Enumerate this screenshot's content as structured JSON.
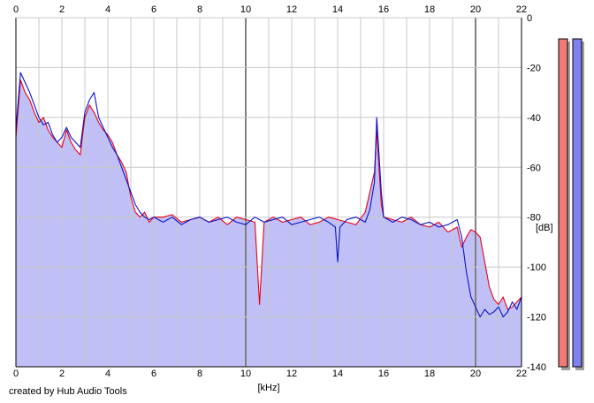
{
  "credit_text": "created by Hub Audio Tools",
  "chart_data": {
    "type": "area",
    "xlabel": "[kHz]",
    "ylabel": "[dB]",
    "xlim": [
      0,
      22
    ],
    "ylim": [
      -140,
      0
    ],
    "x_ticks": [
      "0",
      "2",
      "4",
      "6",
      "8",
      "10",
      "12",
      "14",
      "16",
      "18",
      "20",
      "22"
    ],
    "y_ticks": [
      "0",
      "-20",
      "-40",
      "-60",
      "-80",
      "-100",
      "-120",
      "-140"
    ],
    "grid": true,
    "colors": {
      "fill": "#c0c0f6",
      "channel_red": "#e8001a",
      "channel_blue": "#0a14c8",
      "meter_red": "#ef7b74",
      "meter_blue": "#8080f0",
      "grid": "#c8c8c8",
      "major_grid": "#808080"
    },
    "series": [
      {
        "color": "red",
        "x": [
          0,
          0.2,
          0.4,
          0.6,
          0.8,
          1.0,
          1.2,
          1.4,
          1.6,
          1.8,
          2.0,
          2.2,
          2.4,
          2.6,
          2.8,
          3.0,
          3.2,
          3.4,
          3.6,
          3.8,
          4.0,
          4.2,
          4.4,
          4.6,
          4.8,
          5.0,
          5.2,
          5.4,
          5.6,
          5.8,
          6.0,
          6.4,
          6.8,
          7.2,
          7.6,
          8.0,
          8.4,
          8.8,
          9.2,
          9.6,
          10.0,
          10.4,
          10.6,
          10.8,
          11.2,
          11.6,
          12.0,
          12.4,
          12.8,
          13.2,
          13.6,
          14.0,
          14.4,
          14.8,
          15.2,
          15.4,
          15.6,
          15.7,
          15.8,
          15.9,
          16.0,
          16.4,
          16.8,
          17.2,
          17.6,
          18.0,
          18.4,
          18.8,
          19.2,
          19.4,
          19.6,
          19.8,
          20.0,
          20.2,
          20.4,
          20.6,
          20.8,
          21.0,
          21.2,
          21.4,
          21.6,
          21.8,
          22.0
        ],
        "values": [
          -48,
          -25,
          -30,
          -33,
          -38,
          -42,
          -40,
          -45,
          -48,
          -50,
          -52,
          -45,
          -50,
          -53,
          -55,
          -40,
          -35,
          -38,
          -42,
          -45,
          -47,
          -50,
          -55,
          -58,
          -62,
          -72,
          -78,
          -80,
          -78,
          -82,
          -80,
          -80,
          -79,
          -82,
          -81,
          -80,
          -82,
          -80,
          -83,
          -80,
          -81,
          -82,
          -115,
          -82,
          -80,
          -82,
          -81,
          -80,
          -83,
          -82,
          -80,
          -81,
          -82,
          -83,
          -78,
          -70,
          -62,
          -45,
          -60,
          -75,
          -80,
          -81,
          -82,
          -80,
          -83,
          -84,
          -82,
          -86,
          -84,
          -92,
          -88,
          -85,
          -86,
          -88,
          -98,
          -108,
          -113,
          -115,
          -112,
          -117,
          -116,
          -114,
          -112
        ]
      },
      {
        "color": "blue",
        "x": [
          0,
          0.2,
          0.4,
          0.6,
          0.8,
          1.0,
          1.2,
          1.4,
          1.6,
          1.8,
          2.0,
          2.2,
          2.4,
          2.6,
          2.8,
          3.0,
          3.2,
          3.4,
          3.6,
          3.8,
          4.0,
          4.2,
          4.4,
          4.6,
          4.8,
          5.0,
          5.2,
          5.4,
          5.6,
          5.8,
          6.0,
          6.4,
          6.8,
          7.2,
          7.6,
          8.0,
          8.4,
          8.8,
          9.2,
          9.6,
          10.0,
          10.4,
          10.8,
          11.2,
          11.6,
          12.0,
          12.4,
          12.8,
          13.2,
          13.6,
          13.9,
          14.0,
          14.1,
          14.4,
          14.8,
          15.2,
          15.4,
          15.6,
          15.7,
          15.8,
          15.9,
          16.0,
          16.4,
          16.8,
          17.2,
          17.6,
          18.0,
          18.4,
          18.8,
          19.2,
          19.4,
          19.6,
          19.8,
          20.0,
          20.2,
          20.4,
          20.6,
          20.8,
          21.0,
          21.2,
          21.4,
          21.6,
          21.8,
          22.0
        ],
        "values": [
          -45,
          -22,
          -26,
          -30,
          -35,
          -40,
          -43,
          -42,
          -47,
          -50,
          -48,
          -44,
          -48,
          -50,
          -52,
          -38,
          -33,
          -30,
          -40,
          -44,
          -48,
          -52,
          -55,
          -60,
          -65,
          -70,
          -75,
          -78,
          -80,
          -81,
          -80,
          -82,
          -80,
          -83,
          -81,
          -80,
          -82,
          -81,
          -80,
          -82,
          -83,
          -80,
          -82,
          -81,
          -80,
          -83,
          -82,
          -81,
          -80,
          -82,
          -84,
          -98,
          -84,
          -81,
          -80,
          -82,
          -77,
          -66,
          -40,
          -55,
          -70,
          -80,
          -82,
          -80,
          -81,
          -83,
          -82,
          -84,
          -83,
          -81,
          -88,
          -102,
          -112,
          -116,
          -120,
          -117,
          -119,
          -118,
          -116,
          -120,
          -118,
          -114,
          -117,
          -112
        ]
      }
    ],
    "level_meters": [
      {
        "color": "red",
        "value_db": -140
      },
      {
        "color": "blue",
        "value_db": -140
      }
    ]
  }
}
